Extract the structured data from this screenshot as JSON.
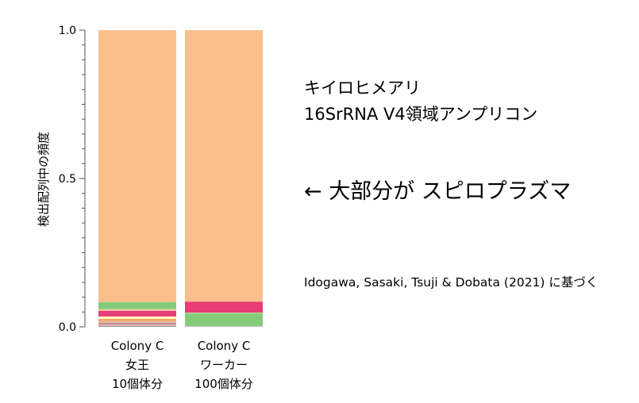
{
  "chart_data": {
    "type": "bar",
    "stacked": true,
    "ylabel": "検出配列中の頻度",
    "ylim": [
      0,
      1.0
    ],
    "yticks": [
      "0.0",
      "0.5",
      "1.0"
    ],
    "grid": false,
    "categories": [
      [
        "Colony C",
        "女王",
        "10個体分"
      ],
      [
        "Colony C",
        "ワーカー",
        "100個体分"
      ]
    ],
    "stacks": [
      [
        {
          "value": 0.003,
          "color": "#9e9e9e"
        },
        {
          "value": 0.003,
          "color": "#e89aa6"
        },
        {
          "value": 0.003,
          "color": "#bcbcbc"
        },
        {
          "value": 0.004,
          "color": "#d06a78"
        },
        {
          "value": 0.003,
          "color": "#cfc6b0"
        },
        {
          "value": 0.004,
          "color": "#e7b7a8"
        },
        {
          "value": 0.007,
          "color": "#f4a46a"
        },
        {
          "value": 0.008,
          "color": "#fdf3c0"
        },
        {
          "value": 0.019,
          "color": "#e73c75"
        },
        {
          "value": 0.006,
          "color": "#fbc7a0"
        },
        {
          "value": 0.023,
          "color": "#85cc7a"
        },
        {
          "value": 0.917,
          "color": "#fbbf8c"
        }
      ],
      [
        {
          "value": 0.003,
          "color": "#bdbdbd"
        },
        {
          "value": 0.044,
          "color": "#85cc7a"
        },
        {
          "value": 0.001,
          "color": "#fdf3c0"
        },
        {
          "value": 0.037,
          "color": "#e73c75"
        },
        {
          "value": 0.915,
          "color": "#fbbf8c"
        }
      ]
    ]
  },
  "side_text": {
    "title_line1": "キイロヒメアリ",
    "title_line2": "16SrRNA V4領域アンプリコン",
    "arrow_note": "← 大部分が スピロプラズマ",
    "citation": "Idogawa, Sasaki, Tsuji & Dobata (2021) に基づく"
  }
}
